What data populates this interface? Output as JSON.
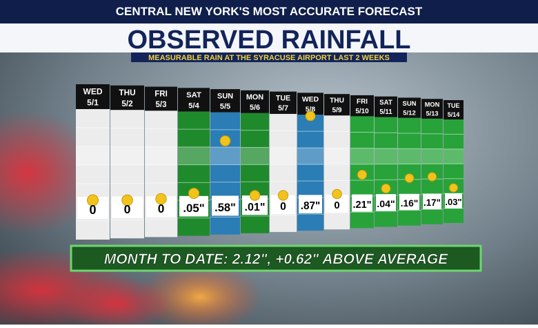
{
  "header": {
    "banner": "CENTRAL NEW YORK'S MOST ACCURATE FORECAST",
    "title": "OBSERVED RAINFALL",
    "subtitle": "MEASURABLE RAIN AT THE SYRACUSE AIRPORT LAST 2 WEEKS"
  },
  "days": [
    {
      "day": "WED",
      "date": "5/1",
      "rain": "0",
      "color": "#ececec"
    },
    {
      "day": "THU",
      "date": "5/2",
      "rain": "0",
      "color": "#ececec"
    },
    {
      "day": "FRI",
      "date": "5/3",
      "rain": "0",
      "color": "#ececec"
    },
    {
      "day": "SAT",
      "date": "5/4",
      "rain": ".05\"",
      "color": "#1e8a2c"
    },
    {
      "day": "SUN",
      "date": "5/5",
      "rain": ".58\"",
      "color": "#2a7db5"
    },
    {
      "day": "MON",
      "date": "5/6",
      "rain": ".01\"",
      "color": "#1e8a2c"
    },
    {
      "day": "TUE",
      "date": "5/7",
      "rain": "0",
      "color": "#ececec"
    },
    {
      "day": "WED",
      "date": "5/8",
      "rain": ".87\"",
      "color": "#2a7db5"
    },
    {
      "day": "THU",
      "date": "5/9",
      "rain": "0",
      "color": "#ececec"
    },
    {
      "day": "FRI",
      "date": "5/10",
      "rain": ".21\"",
      "color": "#27a33a"
    },
    {
      "day": "SAT",
      "date": "5/11",
      "rain": ".04\"",
      "color": "#27a33a"
    },
    {
      "day": "SUN",
      "date": "5/12",
      "rain": ".16\"",
      "color": "#27a33a"
    },
    {
      "day": "MON",
      "date": "5/13",
      "rain": ".17\"",
      "color": "#27a33a"
    },
    {
      "day": "TUE",
      "date": "5/14",
      "rain": ".03\"",
      "color": "#27a33a"
    }
  ],
  "footer": "MONTH TO DATE: 2.12\", +0.62\" ABOVE AVERAGE"
}
